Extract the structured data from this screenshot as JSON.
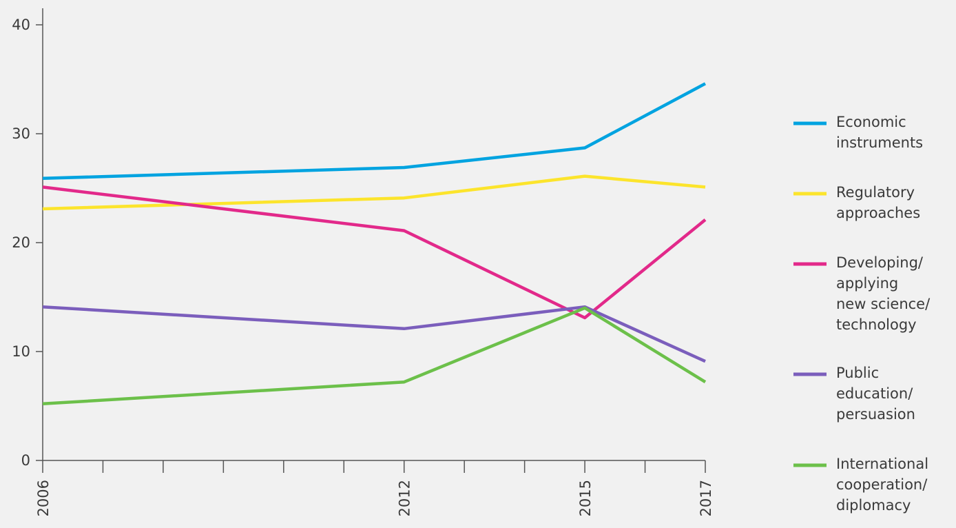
{
  "chart_data": {
    "type": "line",
    "x": [
      2006,
      2012,
      2015,
      2017
    ],
    "xlim": [
      2006,
      2017
    ],
    "ylim": [
      0,
      40
    ],
    "yticks": [
      0,
      10,
      20,
      30,
      40
    ],
    "xticks": [
      2006,
      2012,
      2015,
      2017
    ],
    "xlabel": "",
    "ylabel": "",
    "title": "",
    "grid": false,
    "legend_position": "right",
    "series": [
      {
        "name": "Economic instruments",
        "label_lines": [
          "Economic",
          "instruments"
        ],
        "color": "#00a3e0",
        "values": [
          25.9,
          26.9,
          28.7,
          34.6
        ]
      },
      {
        "name": "Regulatory approaches",
        "label_lines": [
          "Regulatory",
          "approaches"
        ],
        "color": "#fce42c",
        "values": [
          23.1,
          24.1,
          26.1,
          25.1
        ]
      },
      {
        "name": "Developing/ applying new science/ technology",
        "label_lines": [
          "Developing/",
          "applying",
          "new science/",
          "technology"
        ],
        "color": "#e2298a",
        "values": [
          25.1,
          21.1,
          13.1,
          22.1
        ]
      },
      {
        "name": "Public education/ persuasion",
        "label_lines": [
          "Public",
          "education/",
          "persuasion"
        ],
        "color": "#7b5ebc",
        "values": [
          14.1,
          12.1,
          14.1,
          9.1
        ]
      },
      {
        "name": "International cooperation/ diplomacy",
        "label_lines": [
          "International",
          "cooperation/",
          "diplomacy"
        ],
        "color": "#6cc04a",
        "values": [
          5.2,
          7.2,
          14.0,
          7.2
        ]
      }
    ]
  }
}
